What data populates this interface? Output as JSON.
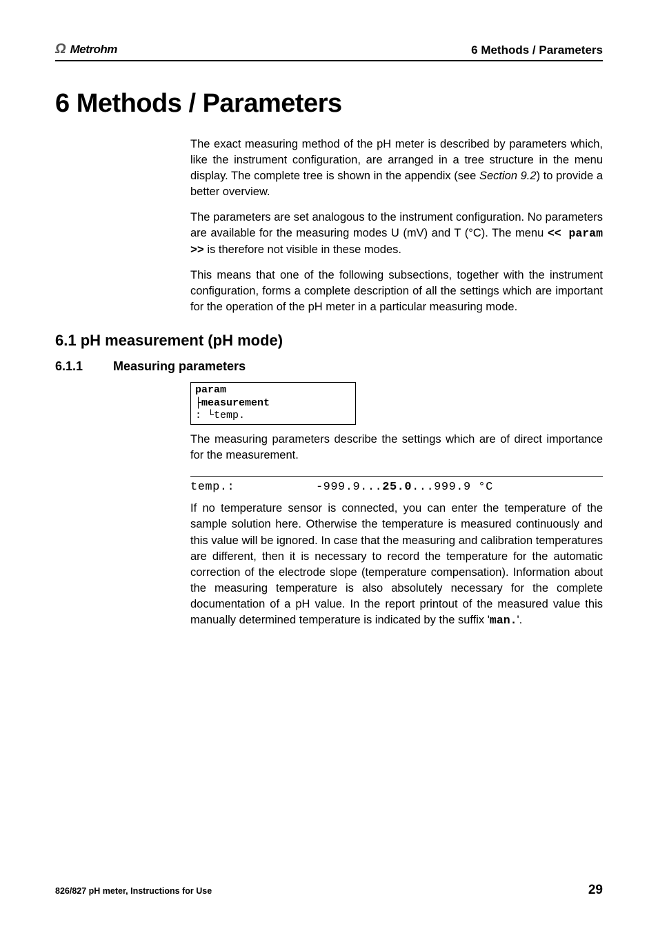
{
  "header": {
    "logo_symbol": "Ω",
    "logo_text": "Metrohm",
    "title": "6 Methods / Parameters"
  },
  "chapter": {
    "title": "6  Methods / Parameters"
  },
  "intro": {
    "p1_a": "The exact measuring method of the pH meter is described by parameters which, like the instrument configuration, are arranged in a tree structure in the menu display. The complete tree is shown in the appendix (see ",
    "p1_italic": "Section 9.2",
    "p1_b": ") to provide a better overview.",
    "p2_a": "The parameters are set analogous to the instrument configuration. No parameters are available for the measuring modes U (mV) and T (°C). The menu ",
    "p2_mono": "<< param >>",
    "p2_b": " is therefore not visible in these modes.",
    "p3": "This means that one of the following subsections, together with the instrument configuration, forms a complete description of all the settings which are important for the operation of the pH meter in a particular measuring mode."
  },
  "section": {
    "title": "6.1   pH measurement (pH mode)"
  },
  "subsection": {
    "num": "6.1.1",
    "title": "Measuring parameters"
  },
  "param_box": {
    "line1": "param",
    "line2_prefix": " ├",
    "line2_text": "measurement",
    "line3_prefix": " :  └",
    "line3_text": "temp."
  },
  "desc": {
    "p1": "The measuring parameters describe the settings which are of direct importance for the measurement."
  },
  "temp_line": {
    "label": "temp.:",
    "range_a": "-999.9...",
    "range_b": "25.0",
    "range_c": "...999.9 °C"
  },
  "temp_desc_a": "If no temperature sensor is connected, you can enter the temperature of the sample solution here. Otherwise the temperature is measured continuously and this value will be ignored. In case that the measuring and calibration temperatures are different, then it is necessary to record the temperature for the automatic correction of the electrode slope (temperature compensation). Information about the measuring temperature is also absolutely necessary for the complete documentation of a pH value. In the report printout of the measured value this manually determined temperature is indicated by the suffix '",
  "temp_desc_mono": "man.",
  "temp_desc_b": "'.",
  "footer": {
    "left": "826/827 pH meter, Instructions for Use",
    "page": "29"
  }
}
